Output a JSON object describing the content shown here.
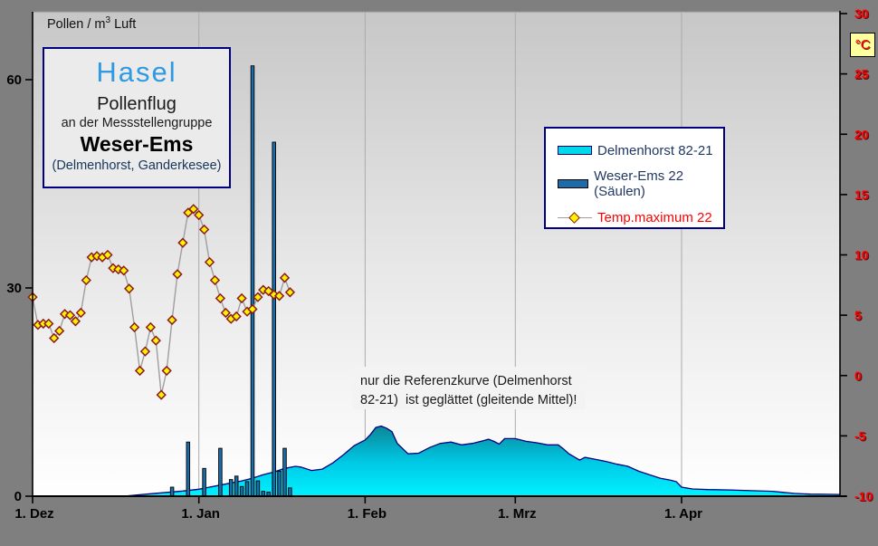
{
  "chart_data": {
    "type": "combo",
    "title_box": {
      "title": "Hasel",
      "subtitle1": "Pollenflug",
      "subtitle2": "an der Messstellengruppe",
      "region": "Weser-Ems",
      "stations": "(Delmenhorst, Ganderkesee)"
    },
    "pollen_axis_label_parts": {
      "prefix": "Pollen / m",
      "sup": "3",
      "suffix": " Luft"
    },
    "x_axis": {
      "tick_labels": [
        "1. Dez",
        "1. Jan",
        "1. Feb",
        "1. Mrz",
        "1. Apr"
      ],
      "tick_days": [
        0,
        31,
        62,
        90,
        121
      ],
      "total_days": 151,
      "grid": true
    },
    "left_axis": {
      "tick_values": [
        0,
        30,
        60
      ],
      "range": [
        0,
        70
      ]
    },
    "right_axis": {
      "unit": "°C",
      "tick_values": [
        -10,
        -5,
        0,
        5,
        10,
        15,
        20,
        25,
        30
      ],
      "range": [
        -10,
        30
      ],
      "color": "#FF0000"
    },
    "legend": {
      "items": [
        {
          "label": "Delmenhorst 82-21",
          "type": "area",
          "swatch_fill": "#00D9E9",
          "swatch_border": "#000080",
          "text_color": "#1F3864"
        },
        {
          "label": "Weser-Ems 22 (Säulen)",
          "type": "bar",
          "swatch_fill": "#1B6CA8",
          "swatch_border": "#000000",
          "text_color": "#1F3864"
        },
        {
          "label": "Temp.maximum 22",
          "type": "line-marker",
          "line_color": "#9E9E9E",
          "marker_fill": "#FFF200",
          "marker_stroke": "#8B1C1C",
          "text_color": "#FF0000"
        }
      ]
    },
    "annotation": {
      "line1": "nur die Referenzkurve (Delmenhorst",
      "line2": "82-21)  ist geglättet (gleitende Mittel)!"
    },
    "series": [
      {
        "name": "Delmenhorst 82-21",
        "type": "area",
        "axis": "left",
        "outline_color": "#000080",
        "gradient_top": "#0C7E8E",
        "gradient_mid": "#00C9E6",
        "gradient_bottom": "#00F2FF",
        "points": [
          [
            17,
            0
          ],
          [
            19,
            0.15
          ],
          [
            22,
            0.35
          ],
          [
            25,
            0.55
          ],
          [
            28,
            0.75
          ],
          [
            31,
            1.0
          ],
          [
            33,
            1.3
          ],
          [
            35,
            1.6
          ],
          [
            37,
            1.9
          ],
          [
            39,
            2.2
          ],
          [
            41,
            2.6
          ],
          [
            43,
            3.1
          ],
          [
            45,
            3.5
          ],
          [
            47,
            4.0
          ],
          [
            49,
            4.3
          ],
          [
            50,
            4.2
          ],
          [
            52,
            3.7
          ],
          [
            54,
            3.9
          ],
          [
            56,
            4.8
          ],
          [
            58,
            6.0
          ],
          [
            60,
            7.3
          ],
          [
            62,
            8.1
          ],
          [
            63,
            8.9
          ],
          [
            64,
            9.9
          ],
          [
            65,
            10.1
          ],
          [
            66,
            9.8
          ],
          [
            67,
            9.3
          ],
          [
            68,
            7.6
          ],
          [
            70,
            6.1
          ],
          [
            72,
            6.2
          ],
          [
            74,
            7.0
          ],
          [
            76,
            7.6
          ],
          [
            78,
            7.8
          ],
          [
            80,
            7.4
          ],
          [
            82,
            7.6
          ],
          [
            84,
            8.0
          ],
          [
            85,
            8.2
          ],
          [
            86,
            7.9
          ],
          [
            87,
            7.5
          ],
          [
            88,
            8.3
          ],
          [
            90,
            8.3
          ],
          [
            92,
            7.9
          ],
          [
            94,
            7.7
          ],
          [
            96,
            7.4
          ],
          [
            98,
            7.4
          ],
          [
            99,
            6.8
          ],
          [
            100,
            6.1
          ],
          [
            102,
            5.2
          ],
          [
            103,
            5.6
          ],
          [
            105,
            5.3
          ],
          [
            107,
            5.0
          ],
          [
            109,
            4.6
          ],
          [
            111,
            4.3
          ],
          [
            113,
            3.6
          ],
          [
            115,
            3.1
          ],
          [
            117,
            2.6
          ],
          [
            119,
            2.3
          ],
          [
            120,
            2.1
          ],
          [
            121,
            1.3
          ],
          [
            123,
            1.05
          ],
          [
            126,
            0.95
          ],
          [
            130,
            0.9
          ],
          [
            134,
            0.8
          ],
          [
            138,
            0.7
          ],
          [
            140,
            0.55
          ],
          [
            142,
            0.4
          ],
          [
            145,
            0.3
          ],
          [
            148,
            0.28
          ],
          [
            151,
            0.25
          ]
        ]
      },
      {
        "name": "Weser-Ems 22 (Säulen)",
        "type": "bar",
        "axis": "left",
        "fill": "#1B6CA8",
        "stroke": "#000000",
        "points": [
          [
            26,
            1.3
          ],
          [
            29,
            7.8
          ],
          [
            32,
            4.0
          ],
          [
            35,
            6.9
          ],
          [
            37,
            2.4
          ],
          [
            38,
            2.9
          ],
          [
            39,
            1.4
          ],
          [
            40,
            2.1
          ],
          [
            41,
            62
          ],
          [
            42,
            2.2
          ],
          [
            43,
            0.7
          ],
          [
            44,
            0.6
          ],
          [
            45,
            51
          ],
          [
            46,
            3.6
          ],
          [
            47,
            6.9
          ],
          [
            48,
            1.2
          ]
        ]
      },
      {
        "name": "Temp.maximum 22",
        "type": "line",
        "axis": "right",
        "line_color": "#9E9E9E",
        "marker_fill": "#FFF200",
        "marker_stroke": "#8B1C1C",
        "points": [
          [
            0,
            6.5
          ],
          [
            1,
            4.2
          ],
          [
            2,
            4.3
          ],
          [
            3,
            4.3
          ],
          [
            4,
            3.1
          ],
          [
            5,
            3.7
          ],
          [
            6,
            5.1
          ],
          [
            7,
            5.0
          ],
          [
            8,
            4.5
          ],
          [
            9,
            5.2
          ],
          [
            10,
            7.9
          ],
          [
            11,
            9.8
          ],
          [
            12,
            9.9
          ],
          [
            13,
            9.8
          ],
          [
            14,
            10.0
          ],
          [
            15,
            8.9
          ],
          [
            16,
            8.8
          ],
          [
            17,
            8.7
          ],
          [
            18,
            7.2
          ],
          [
            19,
            4.0
          ],
          [
            20,
            0.4
          ],
          [
            21,
            2.0
          ],
          [
            22,
            4.0
          ],
          [
            23,
            2.9
          ],
          [
            24,
            -1.6
          ],
          [
            25,
            0.4
          ],
          [
            26,
            4.6
          ],
          [
            27,
            8.4
          ],
          [
            28,
            11.0
          ],
          [
            29,
            13.5
          ],
          [
            30,
            13.8
          ],
          [
            31,
            13.3
          ],
          [
            32,
            12.1
          ],
          [
            33,
            9.4
          ],
          [
            34,
            7.9
          ],
          [
            35,
            6.4
          ],
          [
            36,
            5.2
          ],
          [
            37,
            4.7
          ],
          [
            38,
            4.9
          ],
          [
            39,
            6.4
          ],
          [
            40,
            5.3
          ],
          [
            41,
            5.5
          ],
          [
            42,
            6.5
          ],
          [
            43,
            7.1
          ],
          [
            44,
            7.0
          ],
          [
            45,
            6.7
          ],
          [
            46,
            6.6
          ],
          [
            47,
            8.1
          ],
          [
            48,
            6.9
          ]
        ]
      }
    ]
  }
}
